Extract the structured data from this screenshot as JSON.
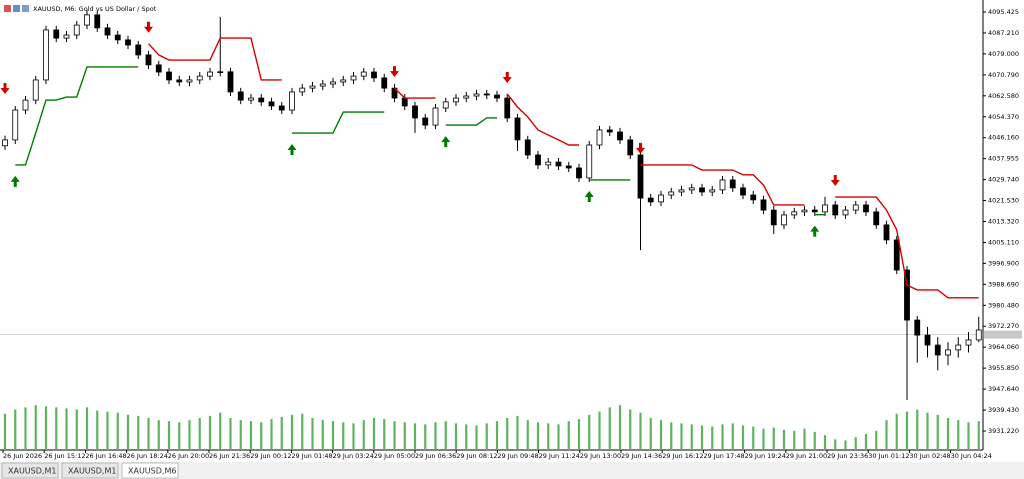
{
  "chart_data": {
    "type": "candlestick",
    "title": "XAUUSD, M6:  Gold vs US Dollar / Spot",
    "ylim": [
      3923.77,
      4100.13
    ],
    "yticks": [
      4095.425,
      {
        "value": 4087.21,
        "label": "4087.210"
      },
      {
        "value": 4079,
        "label": "4079.000"
      },
      {
        "value": 4070.79,
        "label": "4070.790"
      },
      {
        "value": 4062.58,
        "label": "4062.580"
      },
      {
        "value": 4054.37,
        "label": "4054.370"
      },
      {
        "value": 4046.16,
        "label": "4046.160"
      },
      4037.955,
      {
        "value": 4029.74,
        "label": "4029.740"
      },
      {
        "value": 4021.53,
        "label": "4021.530"
      },
      {
        "value": 4013.32,
        "label": "4013.320"
      },
      {
        "value": 4005.11,
        "label": "4005.110"
      },
      {
        "value": 3996.9,
        "label": "3996.900"
      },
      {
        "value": 3988.69,
        "label": "3988.690"
      },
      {
        "value": 3980.48,
        "label": "3980.480"
      },
      {
        "value": 3972.27,
        "label": "3972.270"
      },
      {
        "value": 3964.06,
        "label": "3964.060"
      },
      {
        "value": 3955.85,
        "label": "3955.850"
      },
      {
        "value": 3947.64,
        "label": "3947.640"
      },
      {
        "value": 3939.43,
        "label": "3939.430"
      },
      {
        "value": 3931.22,
        "label": "3931.220"
      }
    ],
    "x_labels": [
      "26 Jun 2026",
      "26 Jun 15:12",
      "26 Jun 16:48",
      "26 Jun 18:24",
      "26 Jun 20:00",
      "26 Jun 21:36",
      "29 Jun 00:12",
      "29 Jun 01:48",
      "29 Jun 03:24",
      "29 Jun 05:00",
      "29 Jun 06:36",
      "29 Jun 08:12",
      "29 Jun 09:48",
      "29 Jun 11:24",
      "29 Jun 13:00",
      "29 Jun 14:36",
      "29 Jun 16:12",
      "29 Jun 17:48",
      "29 Jun 19:24",
      "29 Jun 21:00",
      "29 Jun 23:36",
      "30 Jun 01:12",
      "30 Jun 02:48",
      "30 Jun 04:24"
    ],
    "candle_color": "#000000",
    "open": [
      4043.0,
      4045.3,
      4057.0,
      4060.9,
      4068.8,
      4088.4,
      4085.2,
      4086.4,
      4090.3,
      4094.3,
      4089.2,
      4086.4,
      4084.5,
      4082.5,
      4078.6,
      4074.7,
      4071.9,
      4068.8,
      4068.0,
      4068.8,
      4070.3,
      4071.9,
      4072.0,
      4064.1,
      4060.9,
      4061.7,
      4060.2,
      4058.6,
      4057.0,
      4064.1,
      4065.6,
      4066.4,
      4067.2,
      4068.0,
      4068.8,
      4070.3,
      4071.9,
      4069.6,
      4065.6,
      4061.7,
      4058.6,
      4053.9,
      4051.1,
      4057.8,
      4060.2,
      4061.7,
      4062.5,
      4063.3,
      4062.9,
      4061.7,
      4053.9,
      4045.3,
      4039.4,
      4035.5,
      4036.6,
      4035.1,
      4034.3,
      4030.4,
      4043.3,
      4049.2,
      4048.4,
      4045.3,
      4039.4,
      4022.5,
      4021.0,
      4023.7,
      4024.9,
      4025.7,
      4026.5,
      4024.9,
      4025.7,
      4029.6,
      4026.5,
      4023.7,
      4021.8,
      4017.8,
      4012.0,
      4015.9,
      4017.1,
      4017.8,
      4017.1,
      4019.8,
      4015.9,
      4017.8,
      4019.8,
      4017.1,
      4012.0,
      4006.1,
      3994.3,
      3974.7,
      3968.8,
      3964.9,
      3961.0,
      3963.0,
      3964.9,
      3966.9
    ],
    "high": [
      4047.0,
      4058.6,
      4062.5,
      4070.4,
      4090.0,
      4090.0,
      4088.0,
      4091.9,
      4096.2,
      4095.9,
      4090.8,
      4088.0,
      4086.1,
      4084.1,
      4080.2,
      4076.3,
      4073.5,
      4070.4,
      4070.4,
      4071.9,
      4073.5,
      4093.5,
      4073.6,
      4065.7,
      4063.3,
      4063.3,
      4061.8,
      4060.2,
      4065.7,
      4067.2,
      4068.0,
      4068.8,
      4069.6,
      4070.4,
      4071.9,
      4073.5,
      4073.5,
      4071.2,
      4067.2,
      4063.3,
      4060.2,
      4055.5,
      4059.4,
      4061.8,
      4063.3,
      4064.1,
      4064.9,
      4064.9,
      4064.5,
      4063.3,
      4055.5,
      4046.9,
      4041.0,
      4038.2,
      4038.2,
      4036.7,
      4035.9,
      4044.9,
      4050.8,
      4050.8,
      4050.0,
      4046.9,
      4041.0,
      4024.1,
      4025.3,
      4026.5,
      4027.3,
      4028.1,
      4028.1,
      4027.3,
      4031.2,
      4031.2,
      4028.1,
      4025.3,
      4023.4,
      4019.4,
      4017.5,
      4018.7,
      4019.4,
      4019.4,
      4023.0,
      4021.4,
      4019.4,
      4021.4,
      4021.4,
      4018.7,
      4013.6,
      4007.7,
      3995.9,
      3976.3,
      3972.0,
      3968.0,
      3966.0,
      3968.0,
      3970.0,
      3976.0
    ],
    "low": [
      4041.4,
      4043.7,
      4055.4,
      4059.3,
      4067.2,
      4083.6,
      4083.6,
      4084.8,
      4088.7,
      4087.6,
      4084.8,
      4082.9,
      4080.9,
      4077.0,
      4073.1,
      4070.3,
      4067.2,
      4066.4,
      4066.4,
      4067.2,
      4068.7,
      4070.3,
      4062.5,
      4059.3,
      4059.3,
      4058.6,
      4057.0,
      4055.4,
      4055.4,
      4062.5,
      4064.0,
      4064.8,
      4065.6,
      4066.4,
      4067.2,
      4068.7,
      4068.0,
      4064.0,
      4060.1,
      4057.0,
      4048.0,
      4049.5,
      4049.5,
      4056.2,
      4058.6,
      4060.1,
      4060.9,
      4061.3,
      4060.1,
      4052.3,
      4041.0,
      4037.8,
      4033.9,
      4033.9,
      4033.5,
      4032.7,
      4028.8,
      4028.8,
      4041.7,
      4046.8,
      4043.7,
      4037.8,
      4002.1,
      4019.4,
      4019.4,
      4022.1,
      4023.3,
      4024.1,
      4023.3,
      4023.3,
      4024.1,
      4024.9,
      4022.1,
      4020.2,
      4016.2,
      4008.4,
      4010.4,
      4014.3,
      4015.5,
      4015.5,
      4015.5,
      4014.3,
      4014.3,
      4016.2,
      4015.5,
      4010.4,
      4004.5,
      3992.7,
      3943.4,
      3958.0,
      3960.0,
      3955.0,
      3957.0,
      3960.0,
      3962.0,
      3966.0
    ],
    "close": [
      4045.3,
      4057.0,
      4060.9,
      4068.8,
      4088.4,
      4085.2,
      4086.4,
      4090.3,
      4094.3,
      4089.2,
      4086.4,
      4084.5,
      4082.5,
      4078.6,
      4074.7,
      4071.9,
      4068.8,
      4068.0,
      4068.8,
      4070.3,
      4071.9,
      4072.0,
      4064.1,
      4060.9,
      4061.7,
      4060.2,
      4058.6,
      4057.0,
      4064.1,
      4065.6,
      4066.4,
      4067.2,
      4068.0,
      4068.8,
      4070.3,
      4071.9,
      4069.6,
      4065.6,
      4061.7,
      4058.6,
      4053.9,
      4051.1,
      4057.8,
      4060.2,
      4061.7,
      4062.5,
      4063.3,
      4062.9,
      4061.7,
      4053.9,
      4045.3,
      4039.4,
      4035.5,
      4036.6,
      4035.1,
      4034.3,
      4030.4,
      4043.3,
      4049.2,
      4048.4,
      4045.3,
      4039.4,
      4022.5,
      4021.0,
      4023.7,
      4024.9,
      4025.7,
      4026.5,
      4024.9,
      4025.7,
      4029.6,
      4026.5,
      4023.7,
      4021.8,
      4017.8,
      4012.0,
      4015.9,
      4017.1,
      4017.8,
      4017.1,
      4019.8,
      4015.9,
      4017.8,
      4019.8,
      4017.1,
      4012.0,
      4006.1,
      3994.3,
      3974.7,
      3968.8,
      3964.9,
      3961.0,
      3963.0,
      3964.9,
      3966.9,
      3970.8
    ],
    "series": [
      {
        "color": "#d40000",
        "direction": "down",
        "values": [
          4059.0,
          null,
          null,
          null,
          null,
          null,
          null,
          null,
          null,
          null,
          null,
          null,
          null,
          null,
          4083.0,
          4078.6,
          4076.6,
          4076.6,
          4076.6,
          4076.6,
          4076.6,
          4085.2,
          4085.2,
          4085.2,
          4085.2,
          4068.8,
          4068.8,
          4068.8,
          null,
          null,
          null,
          null,
          null,
          null,
          null,
          null,
          null,
          null,
          4065.6,
          4061.7,
          4061.7,
          4061.7,
          4061.7,
          null,
          null,
          null,
          null,
          null,
          null,
          4063.3,
          4058.2,
          4054.3,
          4049.2,
          4047.2,
          4045.3,
          4043.3,
          4043.3,
          null,
          null,
          null,
          null,
          null,
          4035.5,
          4035.5,
          4035.5,
          4035.5,
          4035.5,
          4035.5,
          4033.5,
          4033.5,
          4033.5,
          4033.5,
          4031.6,
          4031.6,
          4027.6,
          4019.8,
          4019.8,
          4019.8,
          4019.8,
          null,
          null,
          4022.9,
          4022.9,
          4022.9,
          4022.9,
          4022.9,
          4017.8,
          4010.0,
          3988.4,
          3986.5,
          3986.5,
          3986.5,
          3983.4,
          3983.4,
          3983.4,
          3983.4
        ]
      },
      {
        "color": "#007a00",
        "direction": "up",
        "values": [
          null,
          4035.5,
          4035.5,
          4048.0,
          4060.9,
          4060.9,
          4062.1,
          4062.1,
          4073.9,
          4073.9,
          4073.9,
          4073.9,
          4073.9,
          4073.9,
          null,
          null,
          null,
          null,
          null,
          null,
          null,
          null,
          null,
          null,
          null,
          null,
          null,
          null,
          4048.0,
          4048.0,
          4048.0,
          4048.0,
          4048.0,
          4056.2,
          4056.2,
          4056.2,
          4056.2,
          4056.2,
          null,
          null,
          null,
          null,
          null,
          4051.1,
          4051.1,
          4051.1,
          4051.1,
          4053.9,
          4053.9,
          null,
          null,
          null,
          null,
          null,
          null,
          null,
          null,
          4029.6,
          4029.6,
          4029.6,
          4029.6,
          4029.6,
          null,
          null,
          null,
          null,
          null,
          null,
          null,
          null,
          null,
          null,
          null,
          null,
          null,
          null,
          null,
          null,
          null,
          4016.0,
          4016.0,
          null,
          null,
          null,
          null,
          null,
          null,
          null,
          null,
          null,
          null,
          null,
          null,
          null,
          null,
          null,
          null,
          null
        ]
      }
    ],
    "volume_color": "#5fb35f",
    "volume_lim": [
      0,
      45
    ],
    "volume": [
      34,
      38,
      40,
      42,
      41,
      40,
      39,
      38,
      40,
      37,
      36,
      35,
      33,
      32,
      30,
      28,
      27,
      26,
      28,
      30,
      32,
      35,
      30,
      28,
      27,
      26,
      29,
      31,
      33,
      34,
      30,
      28,
      27,
      26,
      25,
      28,
      30,
      29,
      27,
      26,
      25,
      24,
      26,
      27,
      25,
      24,
      23,
      25,
      27,
      30,
      32,
      28,
      26,
      25,
      24,
      27,
      29,
      33,
      36,
      40,
      42,
      38,
      35,
      30,
      28,
      26,
      25,
      24,
      23,
      22,
      24,
      25,
      23,
      22,
      20,
      21,
      19,
      18,
      20,
      17,
      14,
      10,
      9,
      12,
      15,
      18,
      28,
      34,
      36,
      38,
      35,
      33,
      30,
      28,
      26,
      27
    ],
    "last_price": 3969.0
  },
  "tabs": [
    "XAUUSD,M1",
    "XAUUSD,M1",
    "XAUUSD,M6"
  ],
  "active_tab": 2
}
